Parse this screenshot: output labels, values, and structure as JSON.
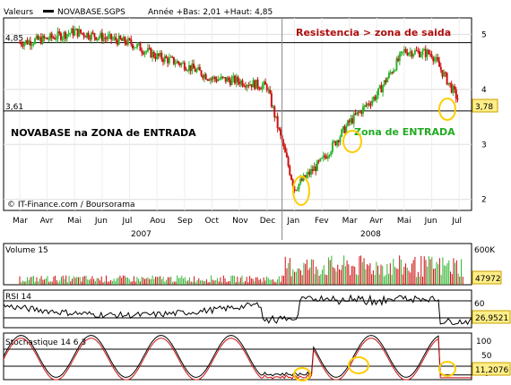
{
  "chart_data": [
    {
      "type": "line",
      "panel": "price",
      "header": {
        "valeurs": "Valeurs",
        "symbol": "NOVABASE.SGPS",
        "range": "Année +Bas: 2,01 +Haut: 4,85"
      },
      "ylim": [
        1.8,
        5.3
      ],
      "yticks": [
        "5",
        "4",
        "3",
        "2"
      ],
      "ytick_values": [
        5,
        4,
        3,
        2
      ],
      "hlines": [
        {
          "value": 4.85,
          "label": "4,85"
        },
        {
          "value": 3.61,
          "label": "3,61"
        }
      ],
      "last_value": "3,78",
      "x": [
        "2007-03",
        "2007-04",
        "2007-05",
        "2007-06",
        "2007-07",
        "2007-08",
        "2007-09",
        "2007-10",
        "2007-11",
        "2007-12",
        "2008-01",
        "2008-02",
        "2008-03",
        "2008-04",
        "2008-05",
        "2008-06",
        "2008-07"
      ],
      "values": [
        4.85,
        4.92,
        5.05,
        4.95,
        4.85,
        4.6,
        4.45,
        4.2,
        4.15,
        4.05,
        2.2,
        2.7,
        3.4,
        3.9,
        4.7,
        4.65,
        3.78
      ],
      "xtick_labels": [
        "Mar",
        "Avr",
        "Mai",
        "Jun",
        "Jul",
        "Aou",
        "Sep",
        "Oct",
        "Nov",
        "Dec",
        "Jan",
        "Fev",
        "Mar",
        "Avr",
        "Mai",
        "Jun",
        "Jul"
      ],
      "year_labels": [
        "2007",
        "2008"
      ],
      "annotations": {
        "resistance": "Resistencia > zona de saida",
        "entry_title": "NOVABASE na ZONA de ENTRADA",
        "entry_zone": "Zona de ENTRADA",
        "credit": "© IT-Finance.com / Boursorama"
      },
      "colors": {
        "up": "#2fb52f",
        "down": "#cc1111",
        "annotation_red": "#b01010",
        "annotation_green": "#22aa22",
        "circle": "#ffcc00",
        "tag_bg": "#ffee88"
      }
    },
    {
      "type": "bar",
      "panel": "volume",
      "title": "Volume 15",
      "ytick_label": "600K",
      "last_value": "47972",
      "ylim": [
        0,
        700000
      ],
      "note": "daily volume bars, higher activity from Jan 2008 onward"
    },
    {
      "type": "line",
      "panel": "rsi",
      "title": "RSI 14",
      "ytick_label": "60",
      "last_value": "26,9521",
      "ylim": [
        20,
        80
      ]
    },
    {
      "type": "line",
      "panel": "stochastic",
      "title": "Stochastique 14 6 3",
      "yticks": [
        "100",
        "50",
        "0"
      ],
      "last_value": "11,2076",
      "ylim": [
        0,
        100
      ]
    }
  ]
}
